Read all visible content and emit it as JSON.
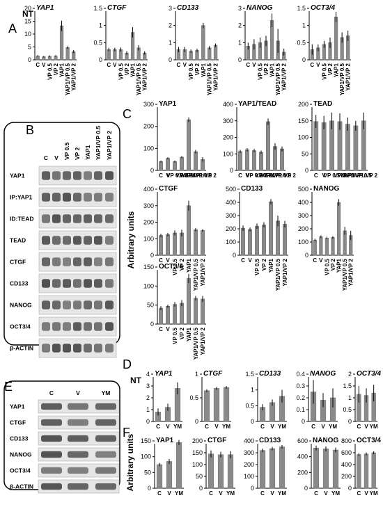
{
  "panel_letters": {
    "A": "A",
    "B": "B",
    "C": "C",
    "D": "D",
    "E": "E",
    "F": "F"
  },
  "ylabels": {
    "A": "NT",
    "C": "Arbitrary units",
    "D": "NT",
    "F": "Arbitrary units"
  },
  "colors": {
    "bar": "#8a8a8a",
    "bar_dark": "#6e6e6e",
    "axis": "#000000",
    "frame": "#000000",
    "band": "#2a2a2a"
  },
  "blot_B": {
    "lanes": [
      "C",
      "V",
      "VP 0.5",
      "VP 2",
      "YAP1",
      "YAP1/VP 0.5",
      "YAP1/VP 2"
    ],
    "rows": [
      "YAP1",
      "IP:YAP1",
      "ID:TEAD",
      "TEAD",
      "CTGF",
      "CD133",
      "NANOG",
      "OCT3/4",
      "β-ACTIN"
    ]
  },
  "blot_E": {
    "lanes": [
      "C",
      "V",
      "YM"
    ],
    "rows": [
      "YAP1",
      "CTGF",
      "CD133",
      "NANOG",
      "OCT3/4",
      "β-ACTIN"
    ]
  },
  "chart_data": [
    {
      "panel": "A",
      "type": "bar",
      "title": "YAP1",
      "italic": true,
      "categories": [
        "C",
        "V",
        "VP 0.5",
        "VP 2",
        "YAP1",
        "YAP1/VP 0.5",
        "YAP1/VP 2"
      ],
      "values": [
        1.5,
        1.2,
        1.4,
        1.5,
        13.2,
        4.8,
        3.2
      ],
      "errors": [
        0.3,
        0.3,
        0.3,
        0.3,
        2.0,
        0.5,
        0.6
      ],
      "ylim": [
        0,
        20
      ],
      "yticks": [
        0,
        5,
        10,
        15,
        20
      ]
    },
    {
      "panel": "A",
      "type": "bar",
      "title": "CTGF",
      "italic": true,
      "categories": [
        "C",
        "V",
        "VP 0.5",
        "VP 2",
        "YAP1",
        "YAP1/VP 0.5",
        "YAP1/VP 2"
      ],
      "values": [
        0.3,
        0.3,
        0.3,
        0.2,
        0.8,
        0.35,
        0.2
      ],
      "errors": [
        0.05,
        0.05,
        0.06,
        0.05,
        0.15,
        0.08,
        0.05
      ],
      "ylim": [
        0,
        1.5
      ],
      "yticks": [
        0,
        0.5,
        1,
        1.5
      ]
    },
    {
      "panel": "A",
      "type": "bar",
      "title": "CD133",
      "italic": true,
      "categories": [
        "C",
        "V",
        "VP 0.5",
        "VP 2",
        "YAP1",
        "YAP1/VP 0.5",
        "YAP1/VP 2"
      ],
      "values": [
        0.6,
        0.6,
        0.5,
        0.55,
        2.0,
        0.7,
        0.85
      ],
      "errors": [
        0.15,
        0.15,
        0.1,
        0.1,
        0.15,
        0.1,
        0.1
      ],
      "ylim": [
        0,
        3
      ],
      "yticks": [
        0,
        1,
        2,
        3
      ]
    },
    {
      "panel": "A",
      "type": "bar",
      "title": "NANOG",
      "italic": true,
      "categories": [
        "C",
        "V",
        "VP 0.5",
        "VP 2",
        "YAP1",
        "YAP1/VP 0.5",
        "YAP1/VP 2"
      ],
      "values": [
        0.8,
        0.9,
        1.0,
        1.1,
        2.3,
        1.1,
        0.45
      ],
      "errors": [
        0.2,
        0.3,
        0.3,
        0.3,
        0.4,
        0.7,
        0.2
      ],
      "ylim": [
        0,
        3
      ],
      "yticks": [
        0,
        1,
        2,
        3
      ]
    },
    {
      "panel": "A",
      "type": "bar",
      "title": "OCT3/4",
      "italic": true,
      "categories": [
        "C",
        "V",
        "VP 0.5",
        "VP 2",
        "YAP1",
        "YAP1/VP 0.5",
        "YAP1/VP 2"
      ],
      "values": [
        0.3,
        0.35,
        0.45,
        0.5,
        1.25,
        0.65,
        0.7
      ],
      "errors": [
        0.15,
        0.1,
        0.1,
        0.15,
        0.15,
        0.15,
        0.15
      ],
      "ylim": [
        0,
        1.5
      ],
      "yticks": [
        0,
        0.5,
        1,
        1.5
      ]
    },
    {
      "panel": "C",
      "type": "bar",
      "title": "YAP1",
      "italic": false,
      "categories": [
        "C",
        "V",
        "VP 0.5",
        "VP 2",
        "YAP1",
        "YAP1/VP 0.5",
        "YAP1/VP 2"
      ],
      "values": [
        40,
        55,
        40,
        60,
        230,
        85,
        50
      ],
      "errors": [
        5,
        5,
        5,
        5,
        10,
        8,
        10
      ],
      "ylim": [
        0,
        300
      ],
      "yticks": [
        0,
        100,
        200,
        300
      ]
    },
    {
      "panel": "C",
      "type": "bar",
      "title": "YAP1/TEAD",
      "italic": false,
      "categories": [
        "C",
        "V",
        "VP 0.5",
        "VP 2",
        "YAP1",
        "YAP1/VP 0.5",
        "YAP1/VP 2"
      ],
      "values": [
        115,
        125,
        120,
        110,
        295,
        145,
        130
      ],
      "errors": [
        10,
        10,
        10,
        10,
        20,
        20,
        15
      ],
      "ylim": [
        0,
        400
      ],
      "yticks": [
        0,
        100,
        200,
        300,
        400
      ]
    },
    {
      "panel": "C",
      "type": "bar",
      "title": "TEAD",
      "italic": false,
      "categories": [
        "C",
        "V",
        "VP 0.5",
        "VP 2",
        "YAP1",
        "YAP1/VP 0.5",
        "YAP1/VP 2"
      ],
      "values": [
        148,
        145,
        150,
        148,
        140,
        135,
        150
      ],
      "errors": [
        20,
        20,
        25,
        25,
        20,
        15,
        25
      ],
      "ylim": [
        0,
        200
      ],
      "yticks": [
        0,
        50,
        100,
        150,
        200
      ]
    },
    {
      "panel": "C",
      "type": "bar",
      "title": "CTGF",
      "italic": false,
      "categories": [
        "C",
        "V",
        "VP 0.5",
        "VP 2",
        "YAP1",
        "YAP1/VP 0.5",
        "YAP1/VP 2"
      ],
      "values": [
        120,
        125,
        135,
        135,
        300,
        155,
        150
      ],
      "errors": [
        10,
        10,
        15,
        20,
        30,
        10,
        8
      ],
      "ylim": [
        0,
        400
      ],
      "yticks": [
        0,
        100,
        200,
        300,
        400
      ]
    },
    {
      "panel": "C",
      "type": "bar",
      "title": "CD133",
      "italic": false,
      "categories": [
        "C",
        "V",
        "VP 0.5",
        "VP 2",
        "YAP1",
        "YAP1/VP 0.5",
        "YAP1/VP 2"
      ],
      "values": [
        205,
        195,
        220,
        230,
        405,
        260,
        235
      ],
      "errors": [
        20,
        15,
        20,
        20,
        20,
        40,
        25
      ],
      "ylim": [
        0,
        500
      ],
      "yticks": [
        0,
        100,
        200,
        300,
        400,
        500
      ]
    },
    {
      "panel": "C",
      "type": "bar",
      "title": "NANOG",
      "italic": false,
      "categories": [
        "C",
        "V",
        "VP 0.5",
        "VP 2",
        "YAP1",
        "YAP1/VP 0.5",
        "YAP1/VP 2"
      ],
      "values": [
        115,
        140,
        130,
        135,
        400,
        185,
        150
      ],
      "errors": [
        10,
        10,
        10,
        10,
        25,
        30,
        35
      ],
      "ylim": [
        0,
        500
      ],
      "yticks": [
        0,
        100,
        200,
        300,
        400,
        500
      ]
    },
    {
      "panel": "C",
      "type": "bar",
      "title": "OCT3/4",
      "italic": false,
      "categories": [
        "C",
        "V",
        "VP 0.5",
        "VP 2",
        "YAP1",
        "YAP1/VP 0.5",
        "YAP1/VP 2"
      ],
      "values": [
        42,
        47,
        52,
        55,
        120,
        68,
        66
      ],
      "errors": [
        5,
        4,
        6,
        8,
        12,
        6,
        8
      ],
      "ylim": [
        0,
        150
      ],
      "yticks": [
        0,
        50,
        100,
        150
      ]
    },
    {
      "panel": "D",
      "type": "bar",
      "title": "YAP1",
      "italic": true,
      "categories": [
        "C",
        "V",
        "YM"
      ],
      "values": [
        0.8,
        1.2,
        2.8
      ],
      "errors": [
        0.3,
        0.3,
        0.5
      ],
      "ylim": [
        0,
        4
      ],
      "yticks": [
        0,
        1,
        2,
        3,
        4
      ]
    },
    {
      "panel": "D",
      "type": "bar",
      "title": "CTGF",
      "italic": true,
      "categories": [
        "C",
        "V",
        "YM"
      ],
      "values": [
        0.65,
        0.7,
        0.72
      ],
      "errors": [
        0.03,
        0.03,
        0.03
      ],
      "ylim": [
        0,
        1
      ],
      "yticks": [
        0,
        0.5,
        1
      ]
    },
    {
      "panel": "D",
      "type": "bar",
      "title": "CD133",
      "italic": true,
      "categories": [
        "C",
        "V",
        "YM"
      ],
      "values": [
        0.45,
        0.6,
        0.8
      ],
      "errors": [
        0.1,
        0.1,
        0.2
      ],
      "ylim": [
        0,
        1.5
      ],
      "yticks": [
        0,
        0.5,
        1,
        1.5
      ]
    },
    {
      "panel": "D",
      "type": "bar",
      "title": "NANOG",
      "italic": true,
      "categories": [
        "C",
        "V",
        "YM"
      ],
      "values": [
        0.25,
        0.18,
        0.2
      ],
      "errors": [
        0.1,
        0.06,
        0.08
      ],
      "ylim": [
        0,
        0.4
      ],
      "yticks": [
        0,
        0.1,
        0.2,
        0.3,
        0.4
      ]
    },
    {
      "panel": "D",
      "type": "bar",
      "title": "OCT3/4",
      "italic": true,
      "categories": [
        "C",
        "V",
        "YM"
      ],
      "values": [
        1.15,
        1.1,
        1.2
      ],
      "errors": [
        0.35,
        0.3,
        0.35
      ],
      "ylim": [
        0,
        2
      ],
      "yticks": [
        0,
        0.5,
        1,
        1.5,
        2
      ]
    },
    {
      "panel": "F",
      "type": "bar",
      "title": "YAP1",
      "italic": false,
      "categories": [
        "C",
        "V",
        "YM"
      ],
      "values": [
        75,
        85,
        145
      ],
      "errors": [
        5,
        8,
        8
      ],
      "ylim": [
        0,
        150
      ],
      "yticks": [
        0,
        50,
        100,
        150
      ]
    },
    {
      "panel": "F",
      "type": "bar",
      "title": "CTGF",
      "italic": false,
      "categories": [
        "C",
        "V",
        "YM"
      ],
      "values": [
        145,
        142,
        142
      ],
      "errors": [
        15,
        12,
        15
      ],
      "ylim": [
        0,
        200
      ],
      "yticks": [
        0,
        50,
        100,
        150,
        200
      ]
    },
    {
      "panel": "F",
      "type": "bar",
      "title": "CD133",
      "italic": false,
      "categories": [
        "C",
        "V",
        "YM"
      ],
      "values": [
        320,
        335,
        350
      ],
      "errors": [
        15,
        15,
        15
      ],
      "ylim": [
        0,
        400
      ],
      "yticks": [
        0,
        100,
        200,
        300,
        400
      ]
    },
    {
      "panel": "F",
      "type": "bar",
      "title": "NANOG",
      "italic": false,
      "categories": [
        "C",
        "V",
        "YM"
      ],
      "values": [
        510,
        500,
        485
      ],
      "errors": [
        30,
        30,
        30
      ],
      "ylim": [
        0,
        600
      ],
      "yticks": [
        0,
        200,
        400,
        600
      ]
    },
    {
      "panel": "F",
      "type": "bar",
      "title": "OCT3/4",
      "italic": false,
      "categories": [
        "C",
        "V",
        "YM"
      ],
      "values": [
        570,
        580,
        600
      ],
      "errors": [
        25,
        25,
        25
      ],
      "ylim": [
        0,
        800
      ],
      "yticks": [
        0,
        200,
        400,
        600,
        800
      ]
    }
  ]
}
